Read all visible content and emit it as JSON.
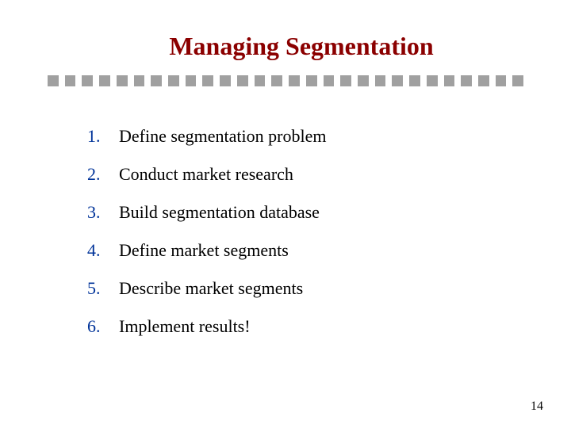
{
  "title": "Managing Segmentation",
  "title_color": "#8b0000",
  "title_fontsize": 32,
  "divider": {
    "square_count": 28,
    "square_color": "#a0a0a0",
    "square_size": 14,
    "gap": 8
  },
  "list": {
    "number_color": "#003399",
    "text_color": "#000000",
    "fontsize": 22,
    "items": [
      {
        "n": "1.",
        "text": "Define segmentation problem"
      },
      {
        "n": "2.",
        "text": "Conduct market research"
      },
      {
        "n": "3.",
        "text": "Build segmentation database"
      },
      {
        "n": "4.",
        "text": "Define market segments"
      },
      {
        "n": "5.",
        "text": "Describe market segments"
      },
      {
        "n": "6.",
        "text": "Implement results!"
      }
    ]
  },
  "page_number": "14",
  "background_color": "#ffffff"
}
